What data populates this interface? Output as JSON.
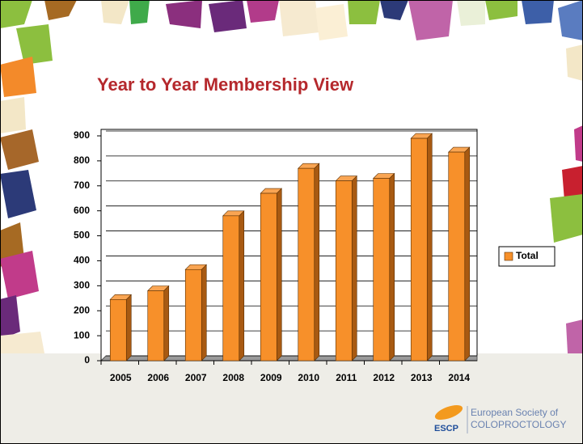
{
  "chart_data": {
    "type": "bar3d",
    "title": "Year to Year Membership View",
    "categories": [
      "2005",
      "2006",
      "2007",
      "2008",
      "2009",
      "2010",
      "2011",
      "2012",
      "2013",
      "2014"
    ],
    "series": [
      {
        "name": "Total",
        "color": "#f7902a",
        "values": [
          245,
          280,
          365,
          580,
          670,
          770,
          720,
          730,
          890,
          835
        ]
      }
    ],
    "ylim": [
      0,
      900
    ],
    "yticks": [
      0,
      100,
      200,
      300,
      400,
      500,
      600,
      700,
      800,
      900
    ],
    "grid": true,
    "legend": "right"
  },
  "logo": {
    "abbr": "ESCP",
    "line1": "European Society of",
    "line2": "COLOPROCTOLOGY"
  }
}
